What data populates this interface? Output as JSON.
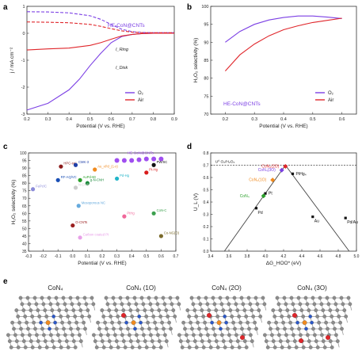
{
  "panels": {
    "a": {
      "letter": "a",
      "xlabel": "Potential (V vs. RHE)",
      "ylabel": "j / mA cm⁻²",
      "xlim": [
        0.2,
        0.9
      ],
      "ylim": [
        -3,
        1
      ],
      "xticks": [
        "0.2",
        "0.3",
        "0.4",
        "0.5",
        "0.6",
        "0.7",
        "0.8",
        "0.9"
      ],
      "yticks": [
        "1",
        "0",
        "-1",
        "-2",
        "-3"
      ],
      "annotation": "HE-CoN@CNTs",
      "i_ring": "I_Ring",
      "i_disk": "I_Disk",
      "legend": [
        {
          "label": "O₂",
          "color": "#7b3fe4"
        },
        {
          "label": "Air",
          "color": "#e0262b"
        }
      ]
    },
    "b": {
      "letter": "b",
      "xlabel": "Potential (V vs. RHE)",
      "ylabel": "H₂O₂ selectivity (%)",
      "xlim": [
        0.15,
        0.65
      ],
      "ylim": [
        70,
        100
      ],
      "xticks": [
        "0.2",
        "0.3",
        "0.4",
        "0.5",
        "0.6"
      ],
      "yticks": [
        "100",
        "95",
        "90",
        "85",
        "80",
        "75",
        "70"
      ],
      "annotation": "HE-CoN@CNTs",
      "legend": [
        {
          "label": "O₂",
          "color": "#7b3fe4"
        },
        {
          "label": "Air",
          "color": "#e0262b"
        }
      ]
    },
    "c": {
      "letter": "c",
      "xlabel": "Potential (V vs. RHE)",
      "ylabel": "H₂O₂ selectivity (%)",
      "xlim": [
        -0.3,
        0.7
      ],
      "ylim": [
        35,
        100
      ],
      "xticks": [
        "-0.3",
        "-0.2",
        "-0.1",
        "0.0",
        "0.1",
        "0.2",
        "0.3",
        "0.4",
        "0.5",
        "0.6",
        "0.7"
      ],
      "yticks": [
        "100",
        "95",
        "90",
        "85",
        "80",
        "75",
        "70",
        "65",
        "60",
        "55",
        "50",
        "45",
        "40",
        "35"
      ]
    },
    "d": {
      "letter": "d",
      "xlabel": "ΔG_HOO* (eV)",
      "ylabel": "U_L (V)",
      "xlim": [
        3.4,
        5.0
      ],
      "ylim": [
        0,
        0.8
      ],
      "xticks": [
        "3.4",
        "3.6",
        "3.8",
        "4.0",
        "4.2",
        "4.4",
        "4.6",
        "4.8",
        "5.0"
      ],
      "yticks": [
        "0.8",
        "0.7",
        "0.6",
        "0.5",
        "0.4",
        "0.3",
        "0.2",
        "0.1",
        "0.0"
      ],
      "u0_label": "U⁰ O₂/H₂O₂"
    },
    "e": {
      "letter": "e",
      "titles": [
        "CoN₄",
        "CoN₄ (1O)",
        "CoN₄ (2O)",
        "CoN₄ (3O)"
      ]
    }
  },
  "chart_data": [
    {
      "type": "line",
      "panel": "a",
      "xlabel": "Potential (V vs. RHE)",
      "ylabel": "j / mA cm⁻²",
      "xlim": [
        0.2,
        0.9
      ],
      "ylim": [
        -3,
        1
      ],
      "series": [
        {
          "name": "O₂ (ring)",
          "color": "#7b3fe4",
          "dashed": true,
          "x": [
            0.2,
            0.3,
            0.4,
            0.5,
            0.55,
            0.6,
            0.65,
            0.7,
            0.75,
            0.8,
            0.9
          ],
          "y": [
            0.8,
            0.79,
            0.76,
            0.65,
            0.52,
            0.33,
            0.15,
            0.06,
            0.03,
            0.02,
            0.02
          ]
        },
        {
          "name": "Air (ring)",
          "color": "#e0262b",
          "dashed": true,
          "x": [
            0.2,
            0.3,
            0.4,
            0.5,
            0.55,
            0.6,
            0.65,
            0.7,
            0.75,
            0.8,
            0.9
          ],
          "y": [
            0.42,
            0.41,
            0.39,
            0.33,
            0.26,
            0.17,
            0.09,
            0.04,
            0.02,
            0.02,
            0.02
          ]
        },
        {
          "name": "O₂ (disk)",
          "color": "#7b3fe4",
          "dashed": false,
          "x": [
            0.2,
            0.3,
            0.4,
            0.45,
            0.5,
            0.55,
            0.6,
            0.65,
            0.7,
            0.75,
            0.8,
            0.9
          ],
          "y": [
            -2.85,
            -2.6,
            -2.1,
            -1.7,
            -1.2,
            -0.75,
            -0.35,
            -0.12,
            -0.04,
            -0.01,
            0.0,
            0.0
          ]
        },
        {
          "name": "Air (disk)",
          "color": "#e0262b",
          "dashed": false,
          "x": [
            0.2,
            0.3,
            0.4,
            0.5,
            0.55,
            0.6,
            0.65,
            0.7,
            0.75,
            0.8,
            0.9
          ],
          "y": [
            -0.62,
            -0.58,
            -0.55,
            -0.45,
            -0.35,
            -0.22,
            -0.1,
            -0.04,
            -0.01,
            0.0,
            0.0
          ]
        }
      ]
    },
    {
      "type": "line",
      "panel": "b",
      "xlabel": "Potential (V vs. RHE)",
      "ylabel": "H₂O₂ selectivity (%)",
      "xlim": [
        0.15,
        0.65
      ],
      "ylim": [
        70,
        100
      ],
      "series": [
        {
          "name": "O₂",
          "color": "#7b3fe4",
          "x": [
            0.2,
            0.25,
            0.3,
            0.35,
            0.4,
            0.45,
            0.5,
            0.55,
            0.6
          ],
          "y": [
            90.0,
            93.0,
            95.0,
            96.2,
            96.9,
            97.3,
            97.3,
            97.0,
            96.6
          ]
        },
        {
          "name": "Air",
          "color": "#e0262b",
          "x": [
            0.2,
            0.25,
            0.3,
            0.35,
            0.4,
            0.45,
            0.5,
            0.55,
            0.6
          ],
          "y": [
            82.0,
            86.5,
            89.5,
            91.8,
            93.5,
            94.6,
            95.5,
            96.1,
            96.7
          ]
        }
      ]
    },
    {
      "type": "scatter",
      "panel": "c",
      "xlabel": "Potential (V vs. RHE)",
      "ylabel": "H₂O₂ selectivity (%)",
      "xlim": [
        -0.3,
        0.7
      ],
      "ylim": [
        35,
        100
      ],
      "highlight": {
        "name": "HE-CoN@CNTs",
        "color": "#a04ff0",
        "x": [
          0.3,
          0.35,
          0.4,
          0.45,
          0.5,
          0.55,
          0.6
        ],
        "y": [
          95,
          95,
          95,
          95.5,
          96,
          96,
          96
        ]
      },
      "points": [
        {
          "label": "HPC-sp²",
          "x": -0.08,
          "y": 91,
          "color": "#8b1a1a"
        },
        {
          "label": "CMK-3",
          "x": 0.02,
          "y": 92,
          "color": "#1f3fa8"
        },
        {
          "label": "Au_xPd_(1-x)",
          "x": 0.15,
          "y": 89,
          "color": "#f08a1e"
        },
        {
          "label": "PW/SC",
          "x": 0.55,
          "y": 92,
          "color": "#111111"
        },
        {
          "label": "Pt-Hg",
          "x": 0.5,
          "y": 87,
          "color": "#d81b1b"
        },
        {
          "label": "RF-AQ/VC",
          "x": -0.1,
          "y": 82,
          "color": "#1a4fb5"
        },
        {
          "label": "AuPd-60",
          "x": 0.05,
          "y": 82,
          "color": "#2aa02a"
        },
        {
          "label": "g-N-CNH",
          "x": 0.1,
          "y": 80,
          "color": "#1a8a3a"
        },
        {
          "label": "Pd-Hg",
          "x": 0.3,
          "y": 83,
          "color": "#21b5c9"
        },
        {
          "label": "FePc/C",
          "x": -0.27,
          "y": 76,
          "color": "#8a8ad8"
        },
        {
          "label": "N-CNS",
          "x": 0.02,
          "y": 77,
          "color": "#cccccc"
        },
        {
          "label": "Mesoporous NC",
          "x": 0.04,
          "y": 65,
          "color": "#66aadd"
        },
        {
          "label": "O-CNTs",
          "x": 0.0,
          "y": 52,
          "color": "#9b2020"
        },
        {
          "label": "PtHg",
          "x": 0.35,
          "y": 58,
          "color": "#f0689a"
        },
        {
          "label": "CoN-C",
          "x": 0.55,
          "y": 60,
          "color": "#3ca04e"
        },
        {
          "label": "Co-NG(O)",
          "x": 0.6,
          "y": 45,
          "color": "#7a6a2a"
        },
        {
          "label": "Carbon coated Pt",
          "x": 0.05,
          "y": 44,
          "color": "#e8a0e8"
        }
      ]
    },
    {
      "type": "scatter",
      "panel": "d",
      "xlabel": "ΔG_HOO* (eV)",
      "ylabel": "U_L (V)",
      "xlim": [
        3.4,
        5.0
      ],
      "ylim": [
        0,
        0.8
      ],
      "volcano": {
        "x": [
          3.55,
          4.22,
          4.92
        ],
        "y": [
          0.0,
          0.7,
          0.0
        ]
      },
      "u0": 0.7,
      "points": [
        {
          "label": "CoN₄(2O)",
          "x": 4.22,
          "y": 0.69,
          "color": "#e0262b"
        },
        {
          "label": "CoN₄(3O)",
          "x": 4.18,
          "y": 0.66,
          "color": "#7b3fe4"
        },
        {
          "label": "CoN₄(1O)",
          "x": 4.08,
          "y": 0.58,
          "color": "#f08a1e"
        },
        {
          "label": "Pt",
          "x": 4.0,
          "y": 0.47,
          "color": "#111111"
        },
        {
          "label": "CoN₄",
          "x": 3.98,
          "y": 0.45,
          "color": "#2aa02a"
        },
        {
          "label": "PtHg₄",
          "x": 4.3,
          "y": 0.63,
          "color": "#111111"
        },
        {
          "label": "Pd",
          "x": 3.9,
          "y": 0.35,
          "color": "#111111"
        },
        {
          "label": "Au",
          "x": 4.52,
          "y": 0.28,
          "color": "#111111"
        },
        {
          "label": "Pd/Au",
          "x": 4.88,
          "y": 0.27,
          "color": "#111111"
        }
      ]
    }
  ]
}
